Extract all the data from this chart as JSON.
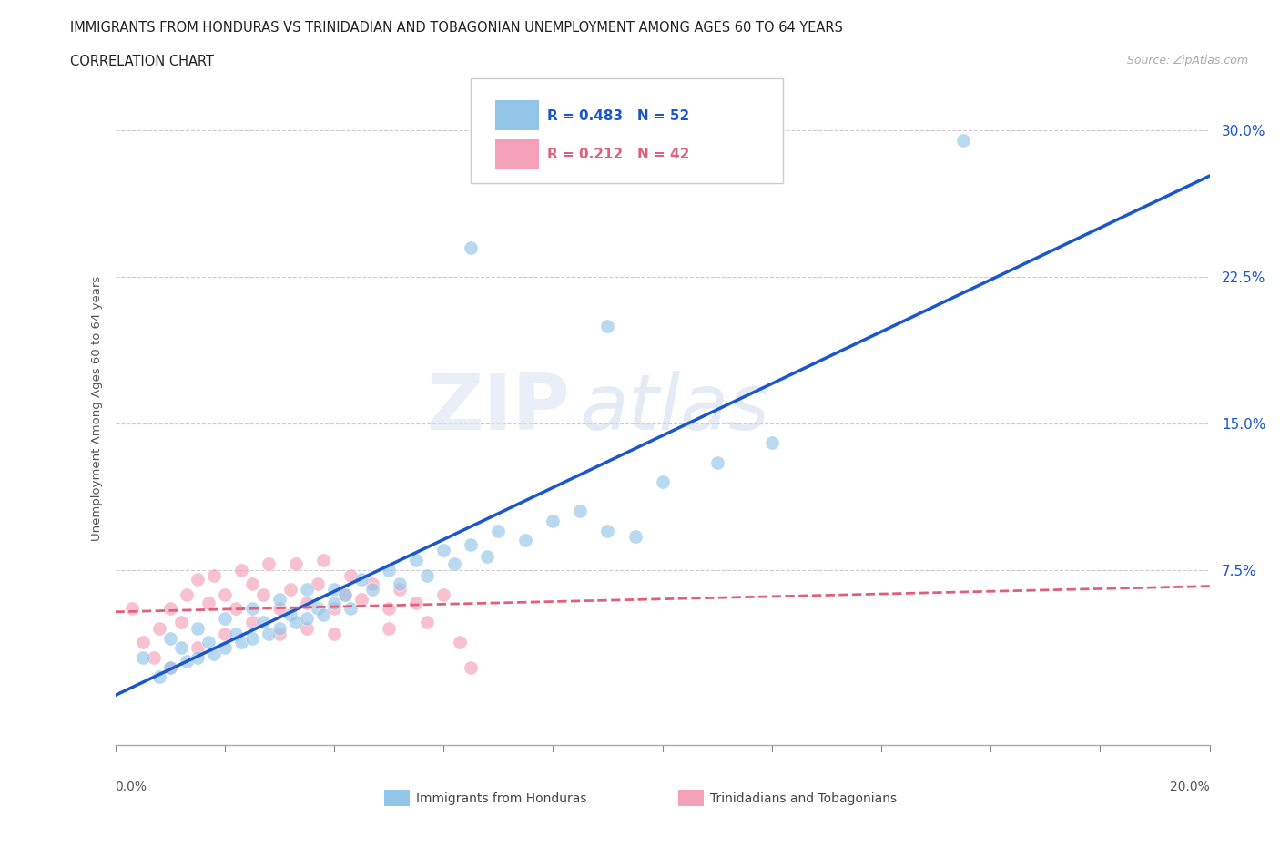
{
  "title": "IMMIGRANTS FROM HONDURAS VS TRINIDADIAN AND TOBAGONIAN UNEMPLOYMENT AMONG AGES 60 TO 64 YEARS",
  "subtitle": "CORRELATION CHART",
  "source": "Source: ZipAtlas.com",
  "ylabel": "Unemployment Among Ages 60 to 64 years",
  "ytick_values": [
    0.0,
    0.075,
    0.15,
    0.225,
    0.3
  ],
  "ytick_labels": [
    "",
    "7.5%",
    "15.0%",
    "22.5%",
    "30.0%"
  ],
  "xmin": 0.0,
  "xmax": 0.2,
  "ymin": -0.015,
  "ymax": 0.33,
  "color_blue": "#92c5e8",
  "color_pink": "#f4a0b8",
  "color_blue_line": "#1a56cc",
  "color_pink_line": "#e0607a",
  "color_grid": "#cccccc",
  "legend_r1_label": "R = 0.483   N = 52",
  "legend_r2_label": "R = 0.212   N = 42",
  "blue_scatter_x": [
    0.005,
    0.008,
    0.01,
    0.01,
    0.012,
    0.013,
    0.015,
    0.015,
    0.017,
    0.018,
    0.02,
    0.02,
    0.022,
    0.023,
    0.025,
    0.025,
    0.027,
    0.028,
    0.03,
    0.03,
    0.032,
    0.033,
    0.035,
    0.035,
    0.037,
    0.038,
    0.04,
    0.04,
    0.042,
    0.043,
    0.045,
    0.047,
    0.05,
    0.052,
    0.055,
    0.057,
    0.06,
    0.062,
    0.065,
    0.068,
    0.07,
    0.075,
    0.08,
    0.085,
    0.09,
    0.095,
    0.1,
    0.11,
    0.12,
    0.065,
    0.09,
    0.155
  ],
  "blue_scatter_y": [
    0.03,
    0.02,
    0.04,
    0.025,
    0.035,
    0.028,
    0.045,
    0.03,
    0.038,
    0.032,
    0.05,
    0.035,
    0.042,
    0.038,
    0.055,
    0.04,
    0.048,
    0.042,
    0.06,
    0.045,
    0.052,
    0.048,
    0.065,
    0.05,
    0.055,
    0.052,
    0.065,
    0.058,
    0.062,
    0.055,
    0.07,
    0.065,
    0.075,
    0.068,
    0.08,
    0.072,
    0.085,
    0.078,
    0.088,
    0.082,
    0.095,
    0.09,
    0.1,
    0.105,
    0.095,
    0.092,
    0.12,
    0.13,
    0.14,
    0.24,
    0.2,
    0.295
  ],
  "pink_scatter_x": [
    0.003,
    0.005,
    0.007,
    0.008,
    0.01,
    0.01,
    0.012,
    0.013,
    0.015,
    0.015,
    0.017,
    0.018,
    0.02,
    0.02,
    0.022,
    0.023,
    0.025,
    0.025,
    0.027,
    0.028,
    0.03,
    0.03,
    0.032,
    0.033,
    0.035,
    0.035,
    0.037,
    0.038,
    0.04,
    0.04,
    0.042,
    0.043,
    0.045,
    0.047,
    0.05,
    0.05,
    0.052,
    0.055,
    0.057,
    0.06,
    0.063,
    0.065
  ],
  "pink_scatter_y": [
    0.055,
    0.038,
    0.03,
    0.045,
    0.055,
    0.025,
    0.048,
    0.062,
    0.07,
    0.035,
    0.058,
    0.072,
    0.062,
    0.042,
    0.055,
    0.075,
    0.068,
    0.048,
    0.062,
    0.078,
    0.055,
    0.042,
    0.065,
    0.078,
    0.058,
    0.045,
    0.068,
    0.08,
    0.055,
    0.042,
    0.062,
    0.072,
    0.06,
    0.068,
    0.055,
    0.045,
    0.065,
    0.058,
    0.048,
    0.062,
    0.038,
    0.025
  ]
}
